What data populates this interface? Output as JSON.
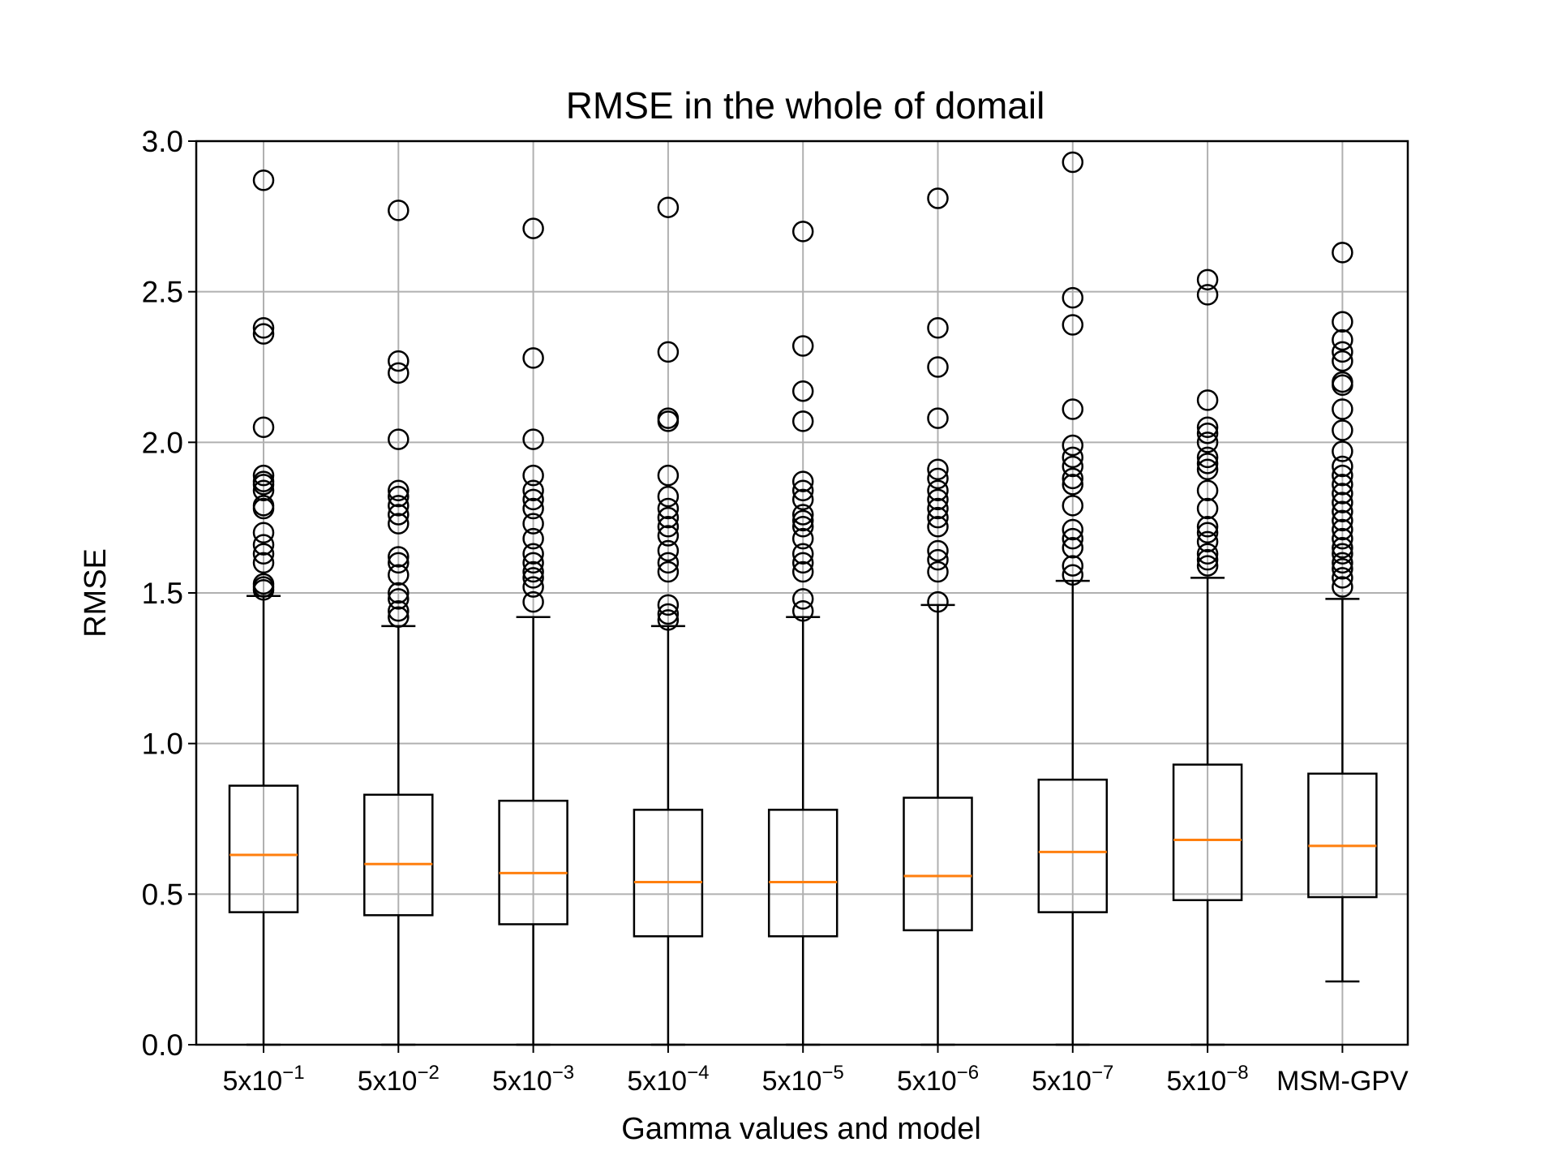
{
  "chart_data": {
    "type": "box",
    "title": "RMSE in the whole of domail",
    "xlabel": "Gamma values and model",
    "ylabel": "RMSE",
    "ylim": [
      0,
      3.0
    ],
    "yticks": [
      0.0,
      0.5,
      1.0,
      1.5,
      2.0,
      2.5,
      3.0
    ],
    "ytick_labels": [
      "0.0",
      "0.5",
      "1.0",
      "1.5",
      "2.0",
      "2.5",
      "3.0"
    ],
    "grid": true,
    "categories": [
      {
        "base": "5x10",
        "exp": "−1"
      },
      {
        "base": "5x10",
        "exp": "−2"
      },
      {
        "base": "5x10",
        "exp": "−3"
      },
      {
        "base": "5x10",
        "exp": "−4"
      },
      {
        "base": "5x10",
        "exp": "−5"
      },
      {
        "base": "5x10",
        "exp": "−6"
      },
      {
        "base": "5x10",
        "exp": "−7"
      },
      {
        "base": "5x10",
        "exp": "−8"
      },
      {
        "base": "MSM-GPV",
        "exp": ""
      }
    ],
    "boxes": [
      {
        "whisker_low": 0.0,
        "q1": 0.44,
        "median": 0.63,
        "q3": 0.86,
        "whisker_high": 1.49,
        "outliers": [
          1.51,
          1.52,
          1.53,
          1.6,
          1.63,
          1.66,
          1.7,
          1.78,
          1.79,
          1.84,
          1.86,
          1.87,
          1.89,
          2.05,
          2.36,
          2.38,
          2.87
        ]
      },
      {
        "whisker_low": 0.0,
        "q1": 0.43,
        "median": 0.6,
        "q3": 0.83,
        "whisker_high": 1.39,
        "outliers": [
          1.42,
          1.44,
          1.48,
          1.5,
          1.56,
          1.6,
          1.62,
          1.73,
          1.76,
          1.79,
          1.82,
          1.84,
          2.01,
          2.23,
          2.27,
          2.77
        ]
      },
      {
        "whisker_low": 0.0,
        "q1": 0.4,
        "median": 0.57,
        "q3": 0.81,
        "whisker_high": 1.42,
        "outliers": [
          1.47,
          1.52,
          1.55,
          1.57,
          1.6,
          1.63,
          1.68,
          1.73,
          1.78,
          1.81,
          1.84,
          1.89,
          2.01,
          2.28,
          2.71
        ]
      },
      {
        "whisker_low": 0.0,
        "q1": 0.36,
        "median": 0.54,
        "q3": 0.78,
        "whisker_high": 1.39,
        "outliers": [
          1.41,
          1.43,
          1.46,
          1.57,
          1.6,
          1.64,
          1.69,
          1.72,
          1.75,
          1.78,
          1.82,
          1.89,
          2.07,
          2.08,
          2.3,
          2.78
        ]
      },
      {
        "whisker_low": 0.0,
        "q1": 0.36,
        "median": 0.54,
        "q3": 0.78,
        "whisker_high": 1.42,
        "outliers": [
          1.44,
          1.48,
          1.57,
          1.6,
          1.63,
          1.68,
          1.72,
          1.74,
          1.76,
          1.81,
          1.84,
          1.87,
          2.07,
          2.17,
          2.32,
          2.7
        ]
      },
      {
        "whisker_low": 0.0,
        "q1": 0.38,
        "median": 0.56,
        "q3": 0.82,
        "whisker_high": 1.46,
        "outliers": [
          1.47,
          1.57,
          1.61,
          1.64,
          1.72,
          1.75,
          1.78,
          1.81,
          1.84,
          1.88,
          1.91,
          2.08,
          2.25,
          2.38,
          2.81
        ]
      },
      {
        "whisker_low": 0.0,
        "q1": 0.44,
        "median": 0.64,
        "q3": 0.88,
        "whisker_high": 1.54,
        "outliers": [
          1.56,
          1.59,
          1.65,
          1.68,
          1.71,
          1.79,
          1.86,
          1.88,
          1.92,
          1.95,
          1.99,
          2.11,
          2.39,
          2.48,
          2.93
        ]
      },
      {
        "whisker_low": 0.0,
        "q1": 0.48,
        "median": 0.68,
        "q3": 0.93,
        "whisker_high": 1.55,
        "outliers": [
          1.59,
          1.61,
          1.63,
          1.67,
          1.7,
          1.72,
          1.78,
          1.84,
          1.91,
          1.93,
          1.95,
          2.0,
          2.03,
          2.05,
          2.14,
          2.49,
          2.54
        ]
      },
      {
        "whisker_low": 0.21,
        "q1": 0.49,
        "median": 0.66,
        "q3": 0.9,
        "whisker_high": 1.48,
        "outliers": [
          1.52,
          1.55,
          1.58,
          1.6,
          1.63,
          1.65,
          1.68,
          1.71,
          1.74,
          1.77,
          1.8,
          1.83,
          1.86,
          1.89,
          1.92,
          1.97,
          2.04,
          2.11,
          2.19,
          2.2,
          2.27,
          2.3,
          2.34,
          2.4,
          2.63
        ]
      }
    ],
    "colors": {
      "box": "#000000",
      "median": "#ff7f0e",
      "grid": "#b0b0b0"
    }
  }
}
